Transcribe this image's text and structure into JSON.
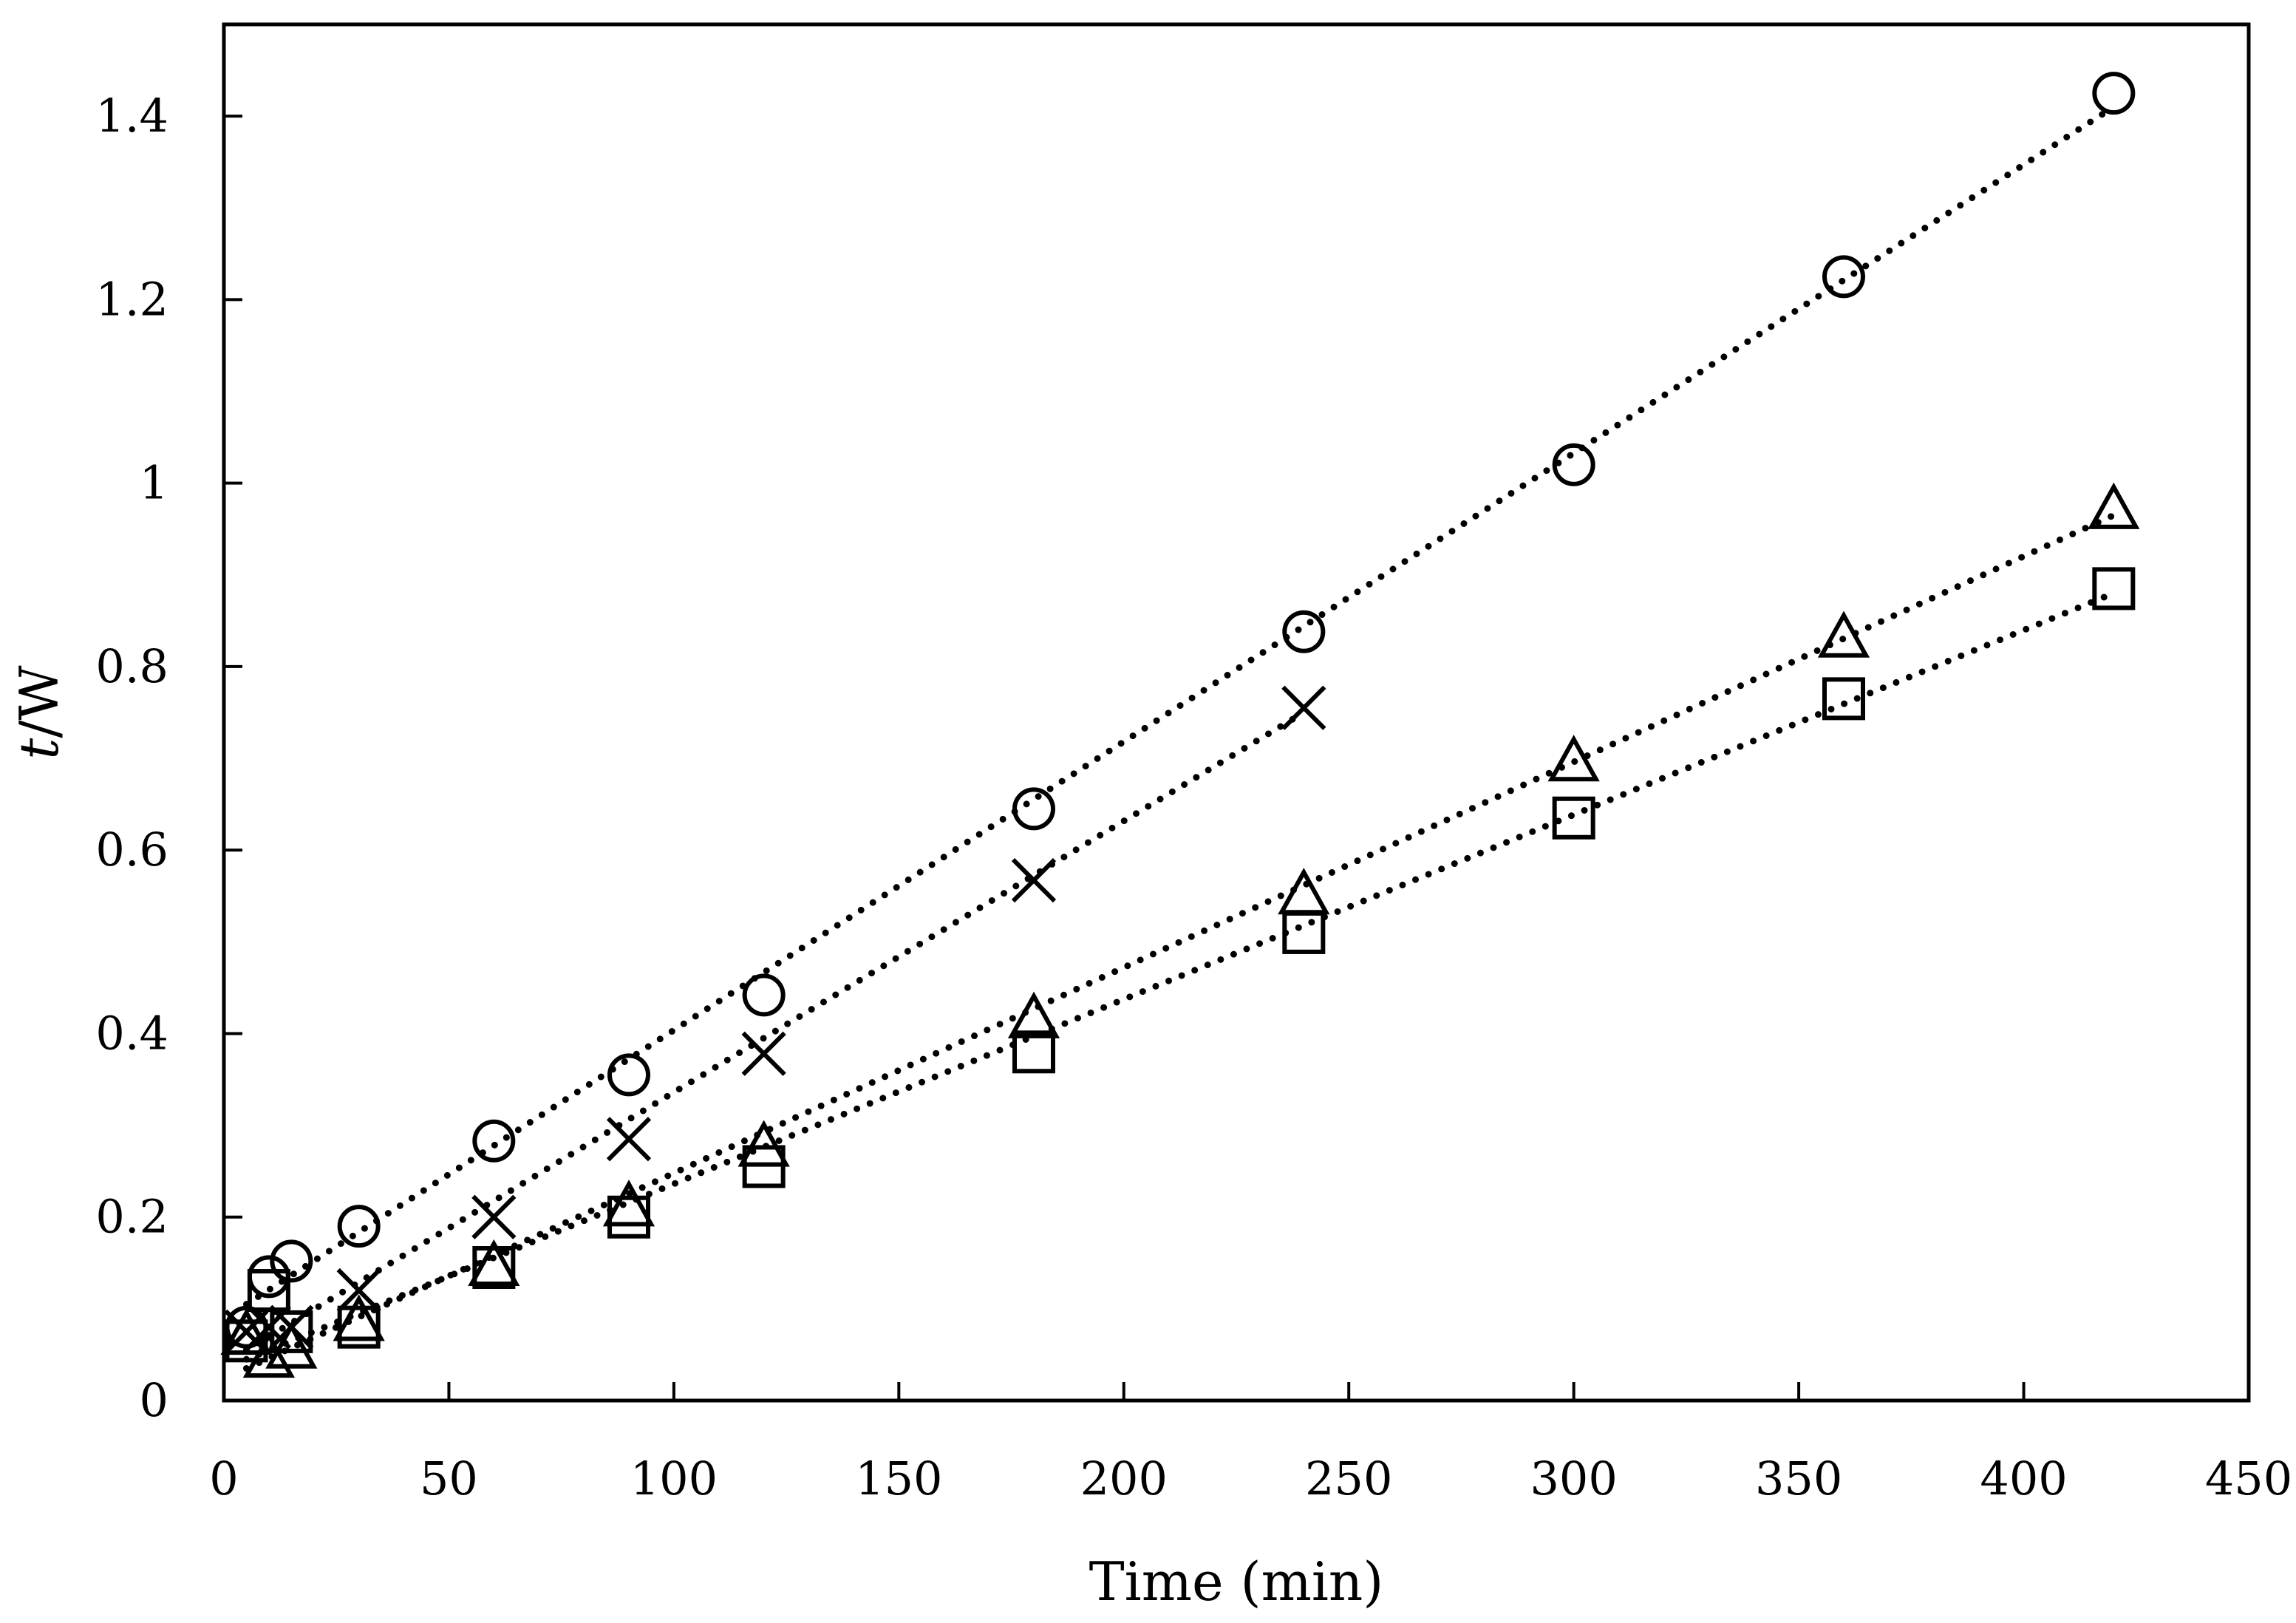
{
  "chart_data": {
    "type": "scatter",
    "title": "",
    "xlabel": "Time (min)",
    "ylabel_italic": "t",
    "ylabel_rest": "/W",
    "xlim": [
      0,
      450
    ],
    "ylim": [
      0,
      1.5
    ],
    "x_ticks": [
      0,
      50,
      100,
      150,
      200,
      250,
      300,
      350,
      400,
      450
    ],
    "x_tick_labels": [
      "0",
      "50",
      "100",
      "150",
      "200",
      "250",
      "300",
      "350",
      "400",
      "450"
    ],
    "y_ticks": [
      0,
      0.2,
      0.4,
      0.6,
      0.8,
      1.0,
      1.2,
      1.4
    ],
    "y_tick_labels": [
      "0",
      "0.2",
      "0.4",
      "0.6",
      "0.8",
      "1",
      "1.2",
      "1.4"
    ],
    "grid": false,
    "legend": false,
    "series": [
      {
        "name": "circle",
        "marker": "circle",
        "x": [
          5,
          10,
          15,
          30,
          60,
          90,
          120,
          180,
          240,
          300,
          360,
          420
        ],
        "y": [
          0.08,
          0.135,
          0.152,
          0.19,
          0.283,
          0.355,
          0.442,
          0.645,
          0.838,
          1.02,
          1.225,
          1.425
        ],
        "fit": {
          "x": [
            5,
            420
          ],
          "y": [
            0.105,
            1.41
          ]
        }
      },
      {
        "name": "cross",
        "marker": "x",
        "x": [
          5,
          10,
          15,
          30,
          60,
          90,
          120,
          180,
          240
        ],
        "y": [
          0.075,
          0.08,
          0.08,
          0.12,
          0.2,
          0.285,
          0.378,
          0.567,
          0.755
        ],
        "fit": {
          "x": [
            5,
            240
          ],
          "y": [
            0.055,
            0.75
          ]
        }
      },
      {
        "name": "triangle",
        "marker": "triangle",
        "x": [
          5,
          10,
          15,
          30,
          60,
          90,
          120,
          180,
          240,
          300,
          360,
          420
        ],
        "y": [
          0.07,
          0.045,
          0.055,
          0.085,
          0.145,
          0.21,
          0.275,
          0.415,
          0.55,
          0.695,
          0.83,
          0.97
        ],
        "fit": {
          "x": [
            5,
            420
          ],
          "y": [
            0.035,
            0.965
          ]
        }
      },
      {
        "name": "square",
        "marker": "square",
        "x": [
          5,
          10,
          15,
          30,
          60,
          90,
          120,
          180,
          240,
          300,
          360,
          420
        ],
        "y": [
          0.065,
          0.12,
          0.075,
          0.08,
          0.145,
          0.2,
          0.255,
          0.38,
          0.51,
          0.635,
          0.765,
          0.885
        ],
        "fit": {
          "x": [
            5,
            420
          ],
          "y": [
            0.045,
            0.88
          ]
        }
      }
    ]
  }
}
